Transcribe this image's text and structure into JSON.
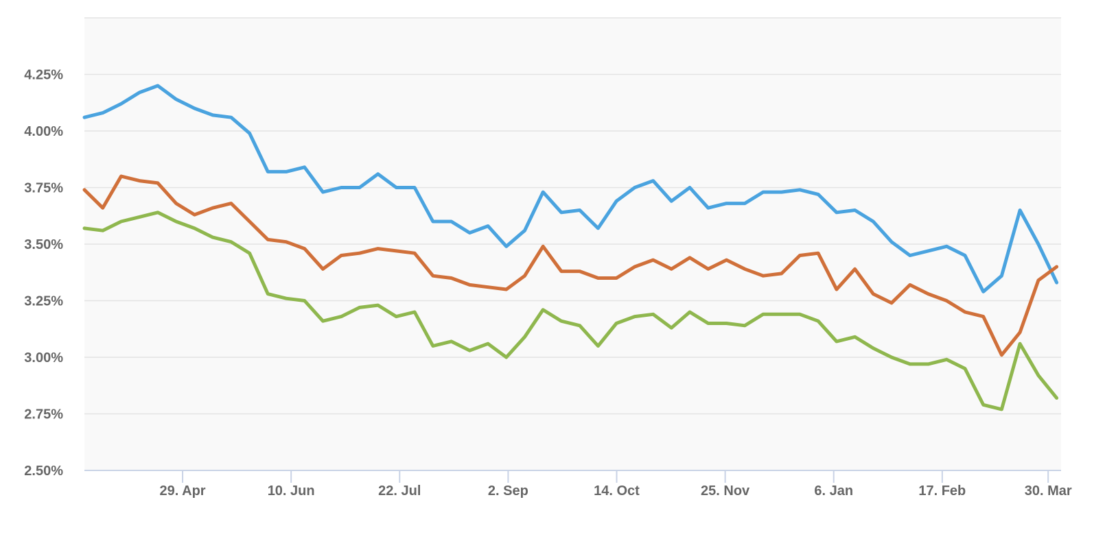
{
  "chart_data": {
    "type": "line",
    "title": "",
    "xlabel": "",
    "ylabel": "",
    "ylim": [
      2.5,
      4.5
    ],
    "yticks": [
      "2.50%",
      "2.75%",
      "3.00%",
      "3.25%",
      "3.50%",
      "3.75%",
      "4.00%",
      "4.25%"
    ],
    "ytick_values": [
      2.5,
      2.75,
      3.0,
      3.25,
      3.5,
      3.75,
      4.0,
      4.25
    ],
    "x_unit": "weekly dates from 2018-03-22 to 2019-04-04",
    "xticks": [
      {
        "label": "29. Apr",
        "date": "2018-04-29"
      },
      {
        "label": "10. Jun",
        "date": "2018-06-10"
      },
      {
        "label": "22. Jul",
        "date": "2018-07-22"
      },
      {
        "label": "2. Sep",
        "date": "2018-09-02"
      },
      {
        "label": "14. Oct",
        "date": "2018-10-14"
      },
      {
        "label": "25. Nov",
        "date": "2018-11-25"
      },
      {
        "label": "6. Jan",
        "date": "2019-01-06"
      },
      {
        "label": "17. Feb",
        "date": "2019-02-17"
      },
      {
        "label": "30. Mar",
        "date": "2019-03-30"
      }
    ],
    "x_start": "2018-03-22",
    "x_end": "2019-04-04",
    "grid": true,
    "legend": "none",
    "background": "#f9f9f9",
    "series": [
      {
        "color": "#4aa3df",
        "values": [
          4.06,
          4.08,
          4.12,
          4.17,
          4.2,
          4.14,
          4.1,
          4.07,
          4.06,
          3.99,
          3.82,
          3.82,
          3.84,
          3.73,
          3.75,
          3.75,
          3.81,
          3.75,
          3.75,
          3.6,
          3.6,
          3.55,
          3.58,
          3.49,
          3.56,
          3.73,
          3.64,
          3.65,
          3.57,
          3.69,
          3.75,
          3.78,
          3.69,
          3.75,
          3.66,
          3.68,
          3.68,
          3.73,
          3.73,
          3.74,
          3.72,
          3.64,
          3.65,
          3.6,
          3.51,
          3.45,
          3.47,
          3.49,
          3.45,
          3.29,
          3.36,
          3.65,
          3.5,
          3.33
        ]
      },
      {
        "color": "#d0703a",
        "values": [
          3.74,
          3.66,
          3.8,
          3.78,
          3.77,
          3.68,
          3.63,
          3.66,
          3.68,
          3.6,
          3.52,
          3.51,
          3.48,
          3.39,
          3.45,
          3.46,
          3.48,
          3.47,
          3.46,
          3.36,
          3.35,
          3.32,
          3.31,
          3.3,
          3.36,
          3.49,
          3.38,
          3.38,
          3.35,
          3.35,
          3.4,
          3.43,
          3.39,
          3.44,
          3.39,
          3.43,
          3.39,
          3.36,
          3.37,
          3.45,
          3.46,
          3.3,
          3.39,
          3.28,
          3.24,
          3.32,
          3.28,
          3.25,
          3.2,
          3.18,
          3.01,
          3.11,
          3.34,
          3.4
        ]
      },
      {
        "color": "#8fb74e",
        "values": [
          3.57,
          3.56,
          3.6,
          3.62,
          3.64,
          3.6,
          3.57,
          3.53,
          3.51,
          3.46,
          3.28,
          3.26,
          3.25,
          3.16,
          3.18,
          3.22,
          3.23,
          3.18,
          3.2,
          3.05,
          3.07,
          3.03,
          3.06,
          3.0,
          3.09,
          3.21,
          3.16,
          3.14,
          3.05,
          3.15,
          3.18,
          3.19,
          3.13,
          3.2,
          3.15,
          3.15,
          3.14,
          3.19,
          3.19,
          3.19,
          3.16,
          3.07,
          3.09,
          3.04,
          3.0,
          2.97,
          2.97,
          2.99,
          2.95,
          2.79,
          2.77,
          3.06,
          2.92,
          2.82
        ]
      }
    ]
  }
}
